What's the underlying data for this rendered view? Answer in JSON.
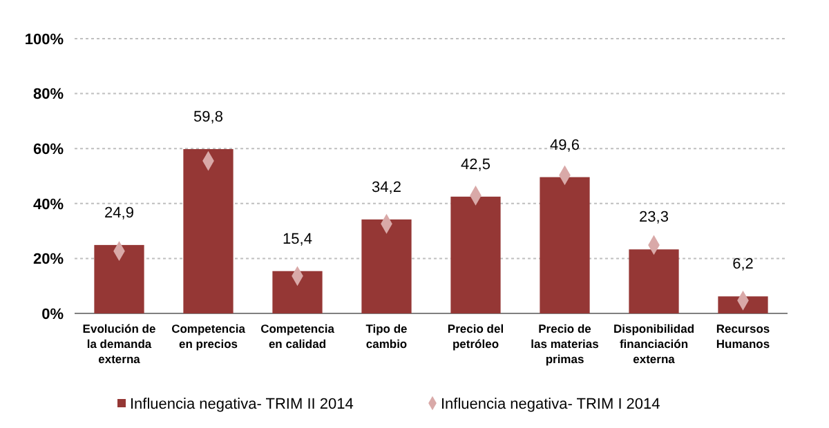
{
  "chart_data": {
    "type": "bar",
    "categories": [
      "Evolución de la demanda externa",
      "Competencia en precios",
      "Competencia en calidad",
      "Tipo de cambio",
      "Precio del petróleo",
      "Precio de las materias primas",
      "Disponibilidad financiación externa",
      "Recursos Humanos"
    ],
    "series": [
      {
        "name": "Influencia negativa- TRIM II 2014",
        "color": "#953735",
        "values": [
          24.9,
          59.8,
          15.4,
          34.2,
          42.5,
          49.6,
          23.3,
          6.2
        ],
        "value_labels": [
          "24,9",
          "59,8",
          "15,4",
          "34,2",
          "42,5",
          "49,6",
          "23,3",
          "6,2"
        ]
      },
      {
        "name": "Influencia negativa- TRIM I 2014",
        "type": "scatter",
        "marker": "diamond",
        "color": "#d9a9a8",
        "values": [
          22.7,
          55.5,
          13.6,
          32.6,
          42.9,
          50.3,
          24.9,
          4.7
        ]
      }
    ],
    "ylim": [
      0,
      100
    ],
    "yticks": [
      {
        "value": 0,
        "label": "0%"
      },
      {
        "value": 20,
        "label": "20%"
      },
      {
        "value": 40,
        "label": "40%"
      },
      {
        "value": 60,
        "label": "60%"
      },
      {
        "value": 80,
        "label": "80%"
      },
      {
        "value": 100,
        "label": "100%"
      }
    ],
    "grid": "y",
    "legend": "bottom"
  }
}
